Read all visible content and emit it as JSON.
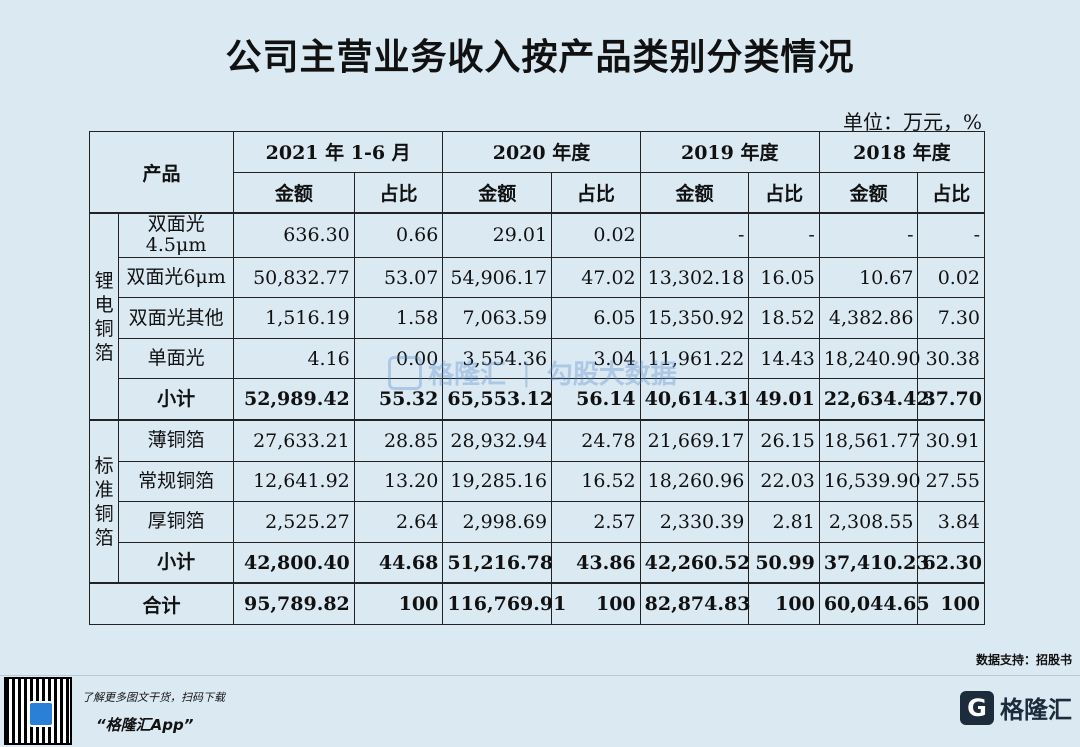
{
  "title": "公司主营业务收入按产品类别分类情况",
  "unit": "单位：万元，%",
  "header": {
    "product": "产品",
    "periods": [
      "2021 年 1-6 月",
      "2020 年度",
      "2019 年度",
      "2018 年度"
    ],
    "amount": "金额",
    "ratio": "占比"
  },
  "groups": [
    {
      "name": "锂电铜箔",
      "rows": [
        {
          "item": "双面光4.5μm",
          "v": [
            "636.30",
            "0.66",
            "29.01",
            "0.02",
            "-",
            "-",
            "-",
            "-"
          ]
        },
        {
          "item": "双面光6μm",
          "v": [
            "50,832.77",
            "53.07",
            "54,906.17",
            "47.02",
            "13,302.18",
            "16.05",
            "10.67",
            "0.02"
          ]
        },
        {
          "item": "双面光其他",
          "v": [
            "1,516.19",
            "1.58",
            "7,063.59",
            "6.05",
            "15,350.92",
            "18.52",
            "4,382.86",
            "7.30"
          ]
        },
        {
          "item": "单面光",
          "v": [
            "4.16",
            "0.00",
            "3,554.36",
            "3.04",
            "11,961.22",
            "14.43",
            "18,240.90",
            "30.38"
          ]
        },
        {
          "item": "小计",
          "v": [
            "52,989.42",
            "55.32",
            "65,553.12",
            "56.14",
            "40,614.31",
            "49.01",
            "22,634.42",
            "37.70"
          ]
        }
      ]
    },
    {
      "name": "标准铜箔",
      "rows": [
        {
          "item": "薄铜箔",
          "v": [
            "27,633.21",
            "28.85",
            "28,932.94",
            "24.78",
            "21,669.17",
            "26.15",
            "18,561.77",
            "30.91"
          ]
        },
        {
          "item": "常规铜箔",
          "v": [
            "12,641.92",
            "13.20",
            "19,285.16",
            "16.52",
            "18,260.96",
            "22.03",
            "16,539.90",
            "27.55"
          ]
        },
        {
          "item": "厚铜箔",
          "v": [
            "2,525.27",
            "2.64",
            "2,998.69",
            "2.57",
            "2,330.39",
            "2.81",
            "2,308.55",
            "3.84"
          ]
        },
        {
          "item": "小计",
          "v": [
            "42,800.40",
            "44.68",
            "51,216.78",
            "43.86",
            "42,260.52",
            "50.99",
            "37,410.23",
            "62.30"
          ]
        }
      ]
    }
  ],
  "total": {
    "label": "合计",
    "v": [
      "95,789.82",
      "100",
      "116,769.91",
      "100",
      "82,874.83",
      "100",
      "60,044.65",
      "100"
    ]
  },
  "watermark": {
    "left": "格隆汇",
    "right": "勾股大数据"
  },
  "source": "数据支持：招股书",
  "footer": {
    "promo_line": "了解更多图文干货，扫码下载",
    "app_name": "“格隆汇App”",
    "brand": "格隆汇",
    "brand_icon": "G"
  }
}
